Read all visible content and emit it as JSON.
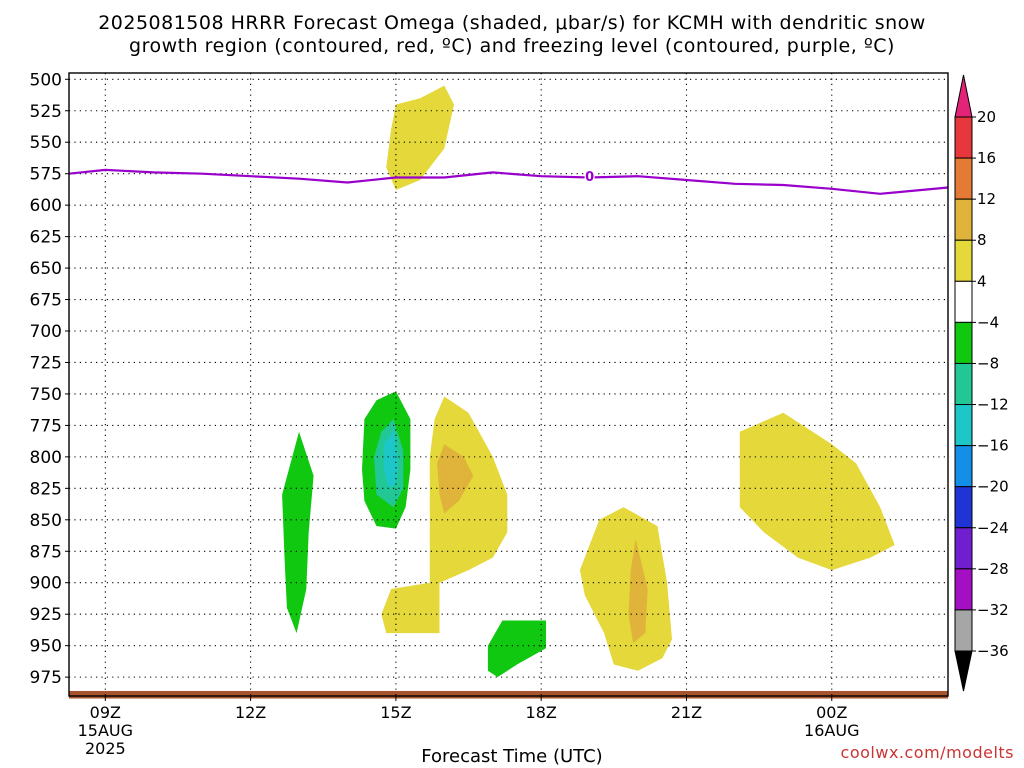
{
  "title_line1": "2025081508 HRRR Forecast Omega (shaded, μbar/s) for KCMH with dendritic snow",
  "title_line2": "growth region (contoured, red, ºC) and freezing level (contoured, purple, ºC)",
  "xlabel": "Forecast Time (UTC)",
  "watermark": "coolwx.com/modelts",
  "chart_data": {
    "type": "time-height contour",
    "model": "HRRR",
    "station": "KCMH",
    "init": "2025081508",
    "y_axis": {
      "label": "",
      "units": "mb",
      "inverted": true,
      "range": [
        495,
        990
      ],
      "ticks": [
        500,
        525,
        550,
        575,
        600,
        625,
        650,
        675,
        700,
        725,
        750,
        775,
        800,
        825,
        850,
        875,
        900,
        925,
        950,
        975
      ],
      "grid": true
    },
    "x_axis": {
      "label": "Forecast Time (UTC)",
      "units": "hours since 09Z 15AUG 2025",
      "range": [
        -0.75,
        17.4
      ],
      "ticks": [
        {
          "hour": 0,
          "label": "09Z",
          "sub1": "15AUG",
          "sub2": "2025"
        },
        {
          "hour": 3,
          "label": "12Z",
          "sub1": "",
          "sub2": ""
        },
        {
          "hour": 6,
          "label": "15Z",
          "sub1": "",
          "sub2": ""
        },
        {
          "hour": 9,
          "label": "18Z",
          "sub1": "",
          "sub2": ""
        },
        {
          "hour": 12,
          "label": "21Z",
          "sub1": "",
          "sub2": ""
        },
        {
          "hour": 15,
          "label": "00Z",
          "sub1": "16AUG",
          "sub2": ""
        }
      ],
      "grid": true
    },
    "freezing_level": {
      "label": "0",
      "color": "#9900cc",
      "label_point": {
        "hour": 10.0,
        "mb": 577
      },
      "points": [
        {
          "hour": -0.75,
          "mb": 575
        },
        {
          "hour": 0.0,
          "mb": 572
        },
        {
          "hour": 1.0,
          "mb": 574
        },
        {
          "hour": 2.0,
          "mb": 575
        },
        {
          "hour": 3.0,
          "mb": 577
        },
        {
          "hour": 4.0,
          "mb": 579
        },
        {
          "hour": 5.0,
          "mb": 582
        },
        {
          "hour": 6.0,
          "mb": 578
        },
        {
          "hour": 7.0,
          "mb": 578
        },
        {
          "hour": 8.0,
          "mb": 574
        },
        {
          "hour": 9.0,
          "mb": 577
        },
        {
          "hour": 10.0,
          "mb": 578
        },
        {
          "hour": 11.0,
          "mb": 577
        },
        {
          "hour": 12.0,
          "mb": 580
        },
        {
          "hour": 13.0,
          "mb": 583
        },
        {
          "hour": 14.0,
          "mb": 584
        },
        {
          "hour": 15.0,
          "mb": 587
        },
        {
          "hour": 16.0,
          "mb": 591
        },
        {
          "hour": 17.4,
          "mb": 586
        }
      ]
    },
    "omega_regions": [
      {
        "level_min": 4,
        "color": "#e5d83a",
        "points": [
          [
            6.5,
            515
          ],
          [
            7.0,
            505
          ],
          [
            7.2,
            520
          ],
          [
            7.0,
            555
          ],
          [
            6.5,
            580
          ],
          [
            6.0,
            588
          ],
          [
            5.8,
            570
          ],
          [
            5.9,
            540
          ],
          [
            6.0,
            520
          ]
        ]
      },
      {
        "level_min": 4,
        "color": "#e5d83a",
        "points": [
          [
            6.8,
            770
          ],
          [
            7.0,
            752
          ],
          [
            7.5,
            765
          ],
          [
            8.0,
            800
          ],
          [
            8.3,
            830
          ],
          [
            8.3,
            860
          ],
          [
            8.0,
            880
          ],
          [
            7.5,
            890
          ],
          [
            6.9,
            900
          ],
          [
            6.9,
            940
          ],
          [
            5.8,
            940
          ],
          [
            5.7,
            925
          ],
          [
            5.9,
            905
          ],
          [
            6.7,
            900
          ],
          [
            6.7,
            850
          ],
          [
            6.7,
            800
          ]
        ]
      },
      {
        "level_min": 8,
        "color": "#e0b43b",
        "points": [
          [
            7.0,
            790
          ],
          [
            7.4,
            800
          ],
          [
            7.6,
            815
          ],
          [
            7.3,
            835
          ],
          [
            7.0,
            845
          ],
          [
            6.9,
            830
          ],
          [
            6.85,
            805
          ]
        ]
      },
      {
        "level_min": 4,
        "color": "#e5d83a",
        "points": [
          [
            9.8,
            890
          ],
          [
            10.2,
            850
          ],
          [
            10.7,
            840
          ],
          [
            11.4,
            855
          ],
          [
            11.6,
            900
          ],
          [
            11.7,
            945
          ],
          [
            11.5,
            960
          ],
          [
            11.0,
            970
          ],
          [
            10.5,
            965
          ],
          [
            10.3,
            940
          ],
          [
            9.9,
            910
          ]
        ]
      },
      {
        "level_min": 8,
        "color": "#e0b43b",
        "points": [
          [
            10.95,
            865
          ],
          [
            11.2,
            905
          ],
          [
            11.15,
            940
          ],
          [
            10.9,
            948
          ],
          [
            10.8,
            925
          ],
          [
            10.85,
            890
          ]
        ]
      },
      {
        "level_min": 4,
        "color": "#e5d83a",
        "points": [
          [
            13.1,
            780
          ],
          [
            14.0,
            765
          ],
          [
            15.0,
            790
          ],
          [
            15.5,
            805
          ],
          [
            16.0,
            840
          ],
          [
            16.3,
            870
          ],
          [
            15.8,
            880
          ],
          [
            15.0,
            890
          ],
          [
            14.3,
            880
          ],
          [
            13.6,
            860
          ],
          [
            13.1,
            840
          ]
        ]
      },
      {
        "level_min": -8,
        "color": "#11c811",
        "points": [
          [
            4.0,
            780
          ],
          [
            4.3,
            815
          ],
          [
            4.2,
            860
          ],
          [
            4.15,
            905
          ],
          [
            3.95,
            940
          ],
          [
            3.75,
            920
          ],
          [
            3.7,
            880
          ],
          [
            3.65,
            830
          ]
        ]
      },
      {
        "level_min": -8,
        "color": "#11c811",
        "points": [
          [
            5.6,
            755
          ],
          [
            6.0,
            748
          ],
          [
            6.3,
            770
          ],
          [
            6.3,
            810
          ],
          [
            6.2,
            840
          ],
          [
            6.0,
            857
          ],
          [
            5.6,
            855
          ],
          [
            5.35,
            835
          ],
          [
            5.3,
            810
          ],
          [
            5.35,
            770
          ]
        ]
      },
      {
        "level_min": -12,
        "color": "#21c896",
        "points": [
          [
            5.95,
            770
          ],
          [
            6.15,
            795
          ],
          [
            6.15,
            825
          ],
          [
            5.95,
            840
          ],
          [
            5.6,
            830
          ],
          [
            5.55,
            800
          ],
          [
            5.7,
            780
          ]
        ]
      },
      {
        "level_min": -16,
        "color": "#1dc7c7",
        "points": [
          [
            5.95,
            778
          ],
          [
            6.05,
            805
          ],
          [
            6.0,
            822
          ],
          [
            5.85,
            825
          ],
          [
            5.75,
            810
          ],
          [
            5.75,
            790
          ]
        ]
      },
      {
        "level_min": -8,
        "color": "#11c811",
        "points": [
          [
            8.2,
            930
          ],
          [
            9.1,
            930
          ],
          [
            9.1,
            952
          ],
          [
            8.5,
            965
          ],
          [
            8.1,
            975
          ],
          [
            7.9,
            970
          ],
          [
            7.9,
            950
          ]
        ]
      }
    ],
    "surface_band": {
      "color": "#a8542e",
      "top_mb": 986,
      "bottom_mb": 992
    },
    "colorbar": {
      "levels": [
        "20",
        "16",
        "12",
        "8",
        "4",
        "-4",
        "-8",
        "-12",
        "-16",
        "-20",
        "-24",
        "-28",
        "-32",
        "-36"
      ],
      "colors": [
        "#e32377",
        "#e6383c",
        "#e57a34",
        "#e0b43b",
        "#e5d83a",
        "#ffffff",
        "#11c811",
        "#21c896",
        "#1dc7c7",
        "#148fe8",
        "#2034d6",
        "#6f1fd0",
        "#a40fc3",
        "#a6a6a6",
        "#000000"
      ]
    }
  }
}
